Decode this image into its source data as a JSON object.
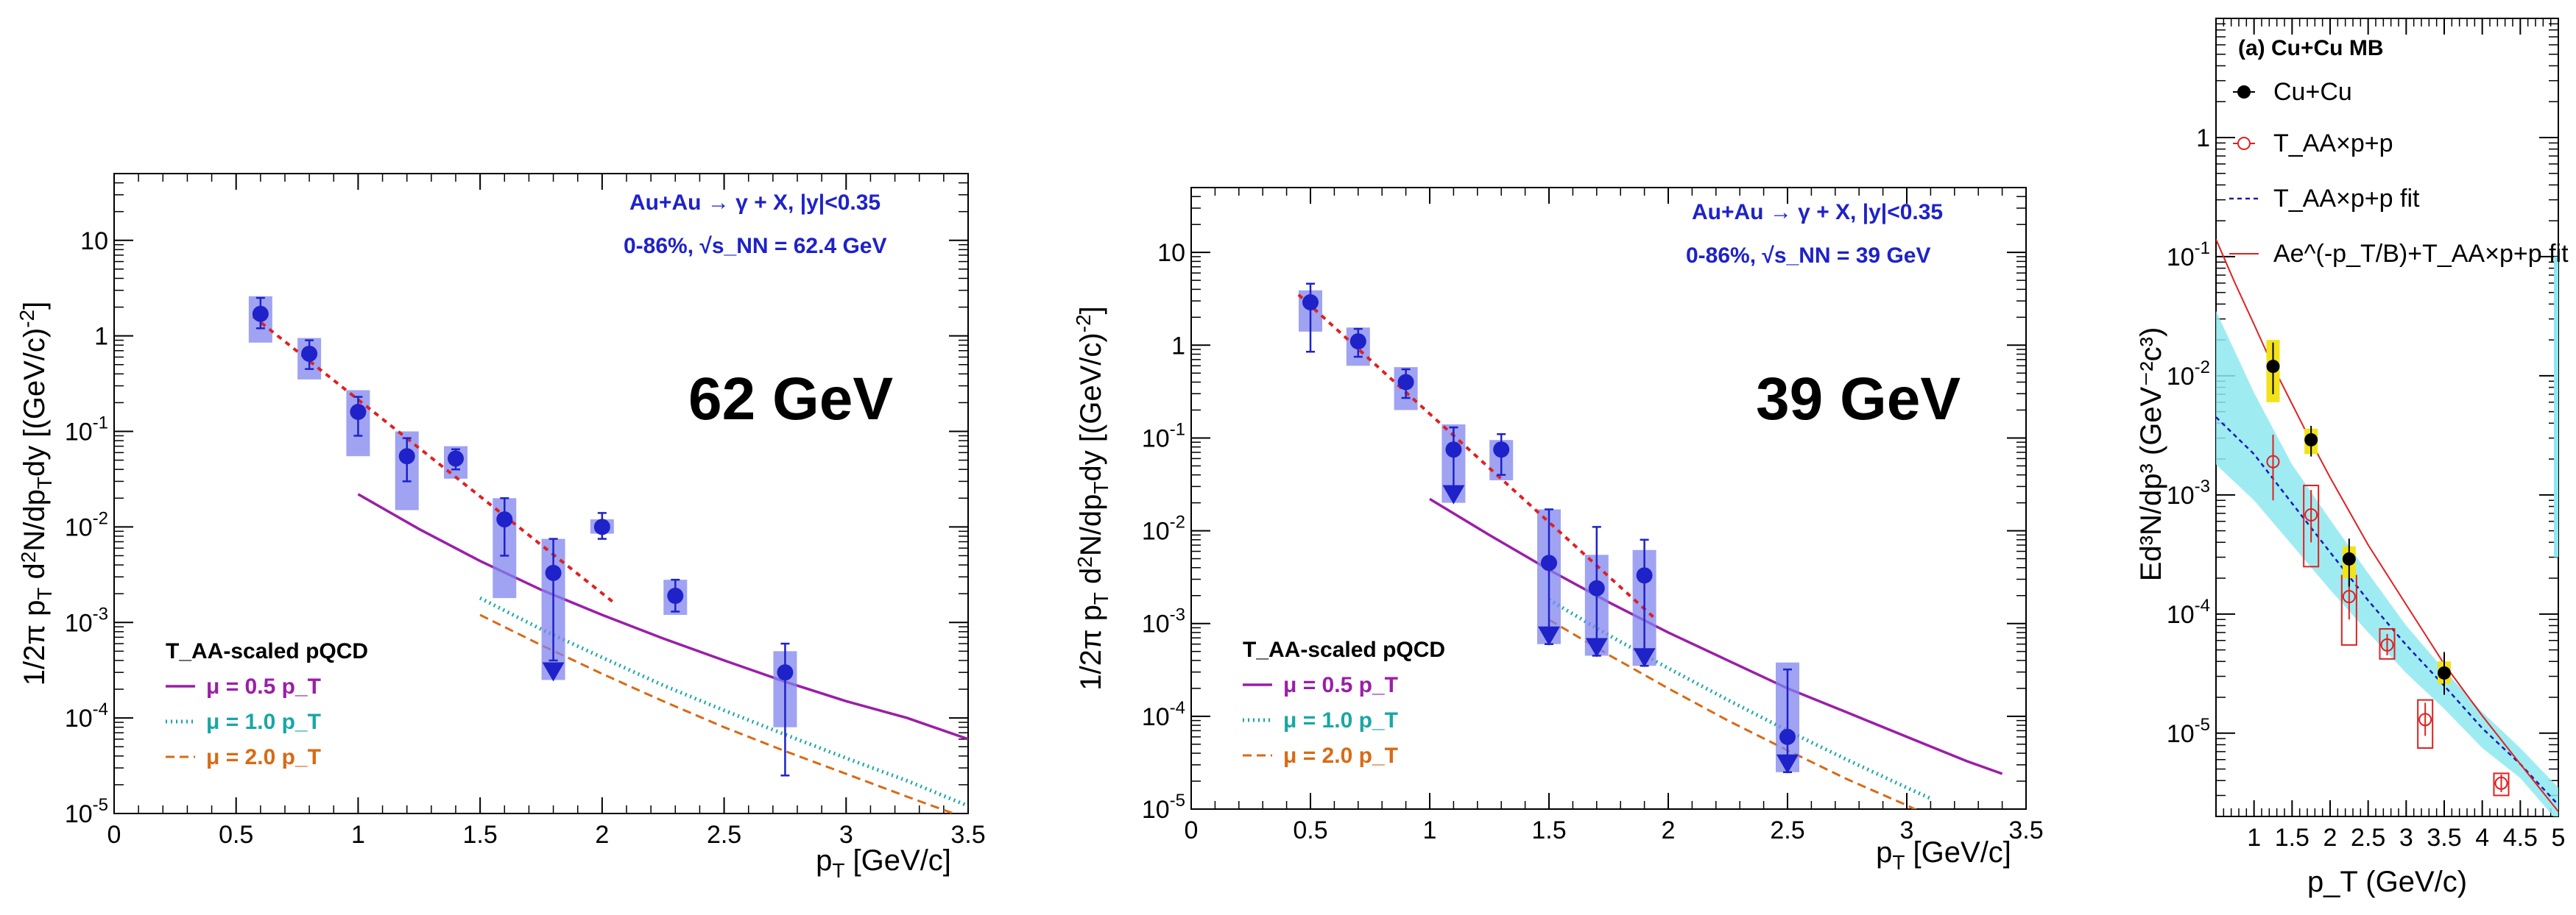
{
  "chart_data": [
    {
      "type": "scatter",
      "panel": "62 GeV",
      "big_label": "62 GeV",
      "xlabel": "p_T [GeV/c]",
      "ylabel": "1/2π p_T d²N/dp_T dy [(GeV/c)⁻²]",
      "xlim": [
        0,
        3.5
      ],
      "ylim": [
        1e-05,
        50
      ],
      "x_ticks": [
        "0",
        "0.5",
        "1",
        "1.5",
        "2",
        "2.5",
        "3",
        "3.5"
      ],
      "y_ticks": [
        "10",
        "1",
        "10⁻¹",
        "10⁻²",
        "10⁻³",
        "10⁻⁴",
        "10⁻⁵"
      ],
      "annotation_line1": "Au+Au → γ + X,   |y|<0.35",
      "annotation_line2": "0-86%,  √s_NN = 62.4 GeV",
      "legend_title": "T_AA-scaled pQCD",
      "legend": [
        "μ = 0.5 p_T",
        "μ = 1.0 p_T",
        "μ = 2.0 p_T"
      ],
      "points": [
        {
          "x": 0.6,
          "y": 1.7,
          "lo": 1.2,
          "hi": 2.5,
          "slo": 0.85,
          "shi": 2.6
        },
        {
          "x": 0.8,
          "y": 0.65,
          "lo": 0.45,
          "hi": 0.9,
          "slo": 0.35,
          "shi": 0.95
        },
        {
          "x": 1.0,
          "y": 0.16,
          "lo": 0.09,
          "hi": 0.23,
          "slo": 0.055,
          "shi": 0.27
        },
        {
          "x": 1.2,
          "y": 0.055,
          "lo": 0.03,
          "hi": 0.085,
          "slo": 0.015,
          "shi": 0.1
        },
        {
          "x": 1.4,
          "y": 0.052,
          "lo": 0.04,
          "hi": 0.065,
          "slo": 0.032,
          "shi": 0.07
        },
        {
          "x": 1.6,
          "y": 0.012,
          "lo": 0.005,
          "hi": 0.02,
          "slo": 0.0018,
          "shi": 0.02
        },
        {
          "x": 1.8,
          "y": 0.0033,
          "lo": 0.0004,
          "hi": 0.0075,
          "slo": 0.00025,
          "shi": 0.0075,
          "limit": true
        },
        {
          "x": 2.0,
          "y": 0.01,
          "lo": 0.0075,
          "hi": 0.014,
          "slo": 0.0085,
          "shi": 0.012
        },
        {
          "x": 2.3,
          "y": 0.0019,
          "lo": 0.0013,
          "hi": 0.0028,
          "slo": 0.0012,
          "shi": 0.0028
        },
        {
          "x": 2.75,
          "y": 0.0003,
          "lo": 2.5e-05,
          "hi": 0.0006,
          "slo": 8e-05,
          "shi": 0.0005
        }
      ],
      "fit": {
        "x0": 0.57,
        "x1": 2.05,
        "y0": 1.6,
        "y1": 0.0016
      },
      "curves": [
        {
          "name": "μ = 0.5 p_T",
          "x": [
            1.0,
            1.25,
            1.5,
            1.75,
            2.0,
            2.25,
            2.5,
            2.75,
            3.0,
            3.25,
            3.5
          ],
          "y": [
            0.022,
            0.0095,
            0.0044,
            0.0022,
            0.0012,
            0.00068,
            0.0004,
            0.00024,
            0.00015,
            0.0001,
            6e-05
          ]
        },
        {
          "name": "μ = 1.0 p_T",
          "x": [
            1.5,
            1.75,
            2.0,
            2.25,
            2.5,
            2.75,
            3.0,
            3.25,
            3.5
          ],
          "y": [
            0.0018,
            0.00085,
            0.00043,
            0.00022,
            0.00012,
            6.7e-05,
            3.8e-05,
            2.2e-05,
            1.2e-05
          ]
        },
        {
          "name": "μ = 2.0 p_T",
          "x": [
            1.5,
            1.75,
            2.0,
            2.25,
            2.5,
            2.75,
            3.0,
            3.25,
            3.5
          ],
          "y": [
            0.0012,
            0.00058,
            0.00029,
            0.00015,
            8e-05,
            4.5e-05,
            2.6e-05,
            1.5e-05,
            8.8e-06
          ]
        }
      ]
    },
    {
      "type": "scatter",
      "panel": "39 GeV",
      "big_label": "39 GeV",
      "xlabel": "p_T [GeV/c]",
      "ylabel": "1/2π p_T d²N/dp_T dy [(GeV/c)⁻²]",
      "xlim": [
        0,
        3.5
      ],
      "ylim": [
        1e-05,
        50
      ],
      "x_ticks": [
        "0",
        "0.5",
        "1",
        "1.5",
        "2",
        "2.5",
        "3",
        "3.5"
      ],
      "y_ticks": [
        "10",
        "1",
        "10⁻¹",
        "10⁻²",
        "10⁻³",
        "10⁻⁴",
        "10⁻⁵"
      ],
      "annotation_line1": "Au+Au → γ + X,   |y|<0.35",
      "annotation_line2": "0-86%,  √s_NN = 39 GeV",
      "legend_title": "T_AA-scaled pQCD",
      "legend": [
        "μ = 0.5 p_T",
        "μ = 1.0 p_T",
        "μ = 2.0 p_T"
      ],
      "points": [
        {
          "x": 0.5,
          "y": 2.9,
          "lo": 0.85,
          "hi": 4.6,
          "slo": 1.4,
          "shi": 3.9
        },
        {
          "x": 0.7,
          "y": 1.1,
          "lo": 0.75,
          "hi": 1.5,
          "slo": 0.6,
          "shi": 1.55
        },
        {
          "x": 0.9,
          "y": 0.4,
          "lo": 0.27,
          "hi": 0.55,
          "slo": 0.2,
          "shi": 0.58
        },
        {
          "x": 1.1,
          "y": 0.075,
          "lo": 0.025,
          "hi": 0.13,
          "slo": 0.02,
          "shi": 0.14,
          "limit": true
        },
        {
          "x": 1.3,
          "y": 0.075,
          "lo": 0.04,
          "hi": 0.11,
          "slo": 0.035,
          "shi": 0.095
        },
        {
          "x": 1.5,
          "y": 0.0045,
          "lo": 0.0006,
          "hi": 0.017,
          "slo": 0.0006,
          "shi": 0.017,
          "limit": true
        },
        {
          "x": 1.7,
          "y": 0.0024,
          "lo": 0.00045,
          "hi": 0.011,
          "slo": 0.00045,
          "shi": 0.0055,
          "limit": true
        },
        {
          "x": 1.9,
          "y": 0.0033,
          "lo": 0.00035,
          "hi": 0.008,
          "slo": 0.00035,
          "shi": 0.0062,
          "limit": true
        },
        {
          "x": 2.5,
          "y": 6e-05,
          "lo": 2.5e-05,
          "hi": 0.00032,
          "slo": 2.5e-05,
          "shi": 0.00038,
          "limit": true
        }
      ],
      "fit": {
        "x0": 0.45,
        "x1": 1.95,
        "y0": 3.5,
        "y1": 0.0011
      },
      "curves": [
        {
          "name": "μ = 0.5 p_T",
          "x": [
            1.0,
            1.25,
            1.5,
            1.75,
            2.0,
            2.25,
            2.5,
            2.75,
            3.0,
            3.25,
            3.4
          ],
          "y": [
            0.022,
            0.009,
            0.0038,
            0.0017,
            0.0008,
            0.0004,
            0.0002,
            0.00011,
            6e-05,
            3.3e-05,
            2.4e-05
          ]
        },
        {
          "name": "μ = 1.0 p_T",
          "x": [
            1.5,
            1.75,
            2.0,
            2.25,
            2.5,
            2.75,
            3.0,
            3.1
          ],
          "y": [
            0.0018,
            0.00075,
            0.00033,
            0.00015,
            7e-05,
            3.4e-05,
            1.7e-05,
            1.3e-05
          ]
        },
        {
          "name": "μ = 2.0 p_T",
          "x": [
            1.5,
            1.75,
            2.0,
            2.25,
            2.5,
            2.75,
            3.0,
            3.05
          ],
          "y": [
            0.0011,
            0.00046,
            0.0002,
            9e-05,
            4.3e-05,
            2.1e-05,
            1.1e-05,
            9.5e-06
          ]
        }
      ]
    },
    {
      "type": "scatter",
      "panel": "(a) Cu+Cu MB",
      "title": "(a) Cu+Cu MB",
      "xlabel": "p_T (GeV/c)",
      "ylabel": "Ed³N/dp³ (GeV⁻²c³)",
      "xlim": [
        0.5,
        5
      ],
      "ylim": [
        2e-06,
        10
      ],
      "x_ticks": [
        "1",
        "1.5",
        "2",
        "2.5",
        "3",
        "3.5",
        "4",
        "4.5",
        "5"
      ],
      "y_ticks": [
        "1",
        "10⁻¹",
        "10⁻²",
        "10⁻³",
        "10⁻⁴",
        "10⁻⁵"
      ],
      "legend": [
        "Cu+Cu",
        "T_AA×p+p",
        "T_AA×p+p fit",
        "Ae^(-p_T/B)+T_AA×p+p fit"
      ],
      "cucu_points": [
        {
          "x": 1.25,
          "y": 0.012,
          "lo": 0.007,
          "hi": 0.019,
          "slo": 0.006,
          "shi": 0.02
        },
        {
          "x": 1.75,
          "y": 0.0029,
          "lo": 0.0021,
          "hi": 0.0038,
          "slo": 0.0022,
          "shi": 0.0036
        },
        {
          "x": 2.25,
          "y": 0.00029,
          "lo": 0.00017,
          "hi": 0.00043,
          "slo": 0.0002,
          "shi": 0.00037
        },
        {
          "x": 3.5,
          "y": 3.2e-05,
          "lo": 2.1e-05,
          "hi": 4.8e-05,
          "slo": 2.6e-05,
          "shi": 4e-05
        }
      ],
      "pp_points": [
        {
          "x": 1.25,
          "y": 0.0019,
          "lo": 0.0009,
          "hi": 0.0032
        },
        {
          "x": 1.75,
          "y": 0.00068,
          "lo": 0.0004,
          "hi": 0.0011,
          "blo": 0.00025,
          "bhi": 0.0012
        },
        {
          "x": 2.25,
          "y": 0.00014,
          "lo": 9e-05,
          "hi": 0.0002,
          "blo": 5.5e-05,
          "bhi": 0.00021
        },
        {
          "x": 2.75,
          "y": 5.5e-05,
          "lo": 4.5e-05,
          "hi": 6.8e-05,
          "blo": 4.2e-05,
          "bhi": 7.5e-05
        },
        {
          "x": 3.25,
          "y": 1.3e-05,
          "lo": 9.5e-06,
          "hi": 1.8e-05,
          "blo": 7.5e-06,
          "bhi": 1.9e-05
        },
        {
          "x": 4.25,
          "y": 3.8e-06,
          "lo": 3.2e-06,
          "hi": 4.5e-06,
          "blo": 3e-06,
          "bhi": 4.6e-06
        }
      ],
      "pp_fit": {
        "x": [
          0.5,
          1.0,
          1.5,
          2.0,
          2.5,
          3.0,
          3.5,
          4.0,
          4.5,
          5.0
        ],
        "y": [
          0.0045,
          0.0022,
          0.00085,
          0.00033,
          0.00013,
          5.5e-05,
          2.5e-05,
          1.1e-05,
          5.5e-06,
          2.5e-06
        ]
      },
      "pp_band_lo": {
        "x": [
          0.5,
          1.0,
          1.5,
          2.0,
          2.5,
          3.0,
          3.5,
          4.0,
          4.5,
          5.0
        ],
        "y": [
          0.0018,
          0.0009,
          0.00038,
          0.00016,
          7e-05,
          3.2e-05,
          1.6e-05,
          7.5e-06,
          4.2e-06,
          1.8e-06
        ]
      },
      "pp_band_hi": {
        "x": [
          0.5,
          1.0,
          1.5,
          2.0,
          2.5,
          3.0,
          3.5,
          4.0,
          4.5,
          5.0
        ],
        "y": [
          0.035,
          0.0072,
          0.0018,
          0.00062,
          0.00022,
          8e-05,
          3.4e-05,
          1.5e-05,
          7.5e-06,
          3.5e-06
        ]
      },
      "total_fit": {
        "x": [
          0.5,
          0.75,
          1.0,
          1.25,
          1.5,
          1.75,
          2.0,
          2.5,
          3.0,
          3.5,
          4.0,
          4.5,
          5.0
        ],
        "y": [
          0.14,
          0.06,
          0.027,
          0.012,
          0.0058,
          0.0028,
          0.0014,
          0.00038,
          0.00012,
          3.8e-05,
          1.4e-05,
          5.5e-06,
          2.2e-06
        ]
      }
    }
  ]
}
